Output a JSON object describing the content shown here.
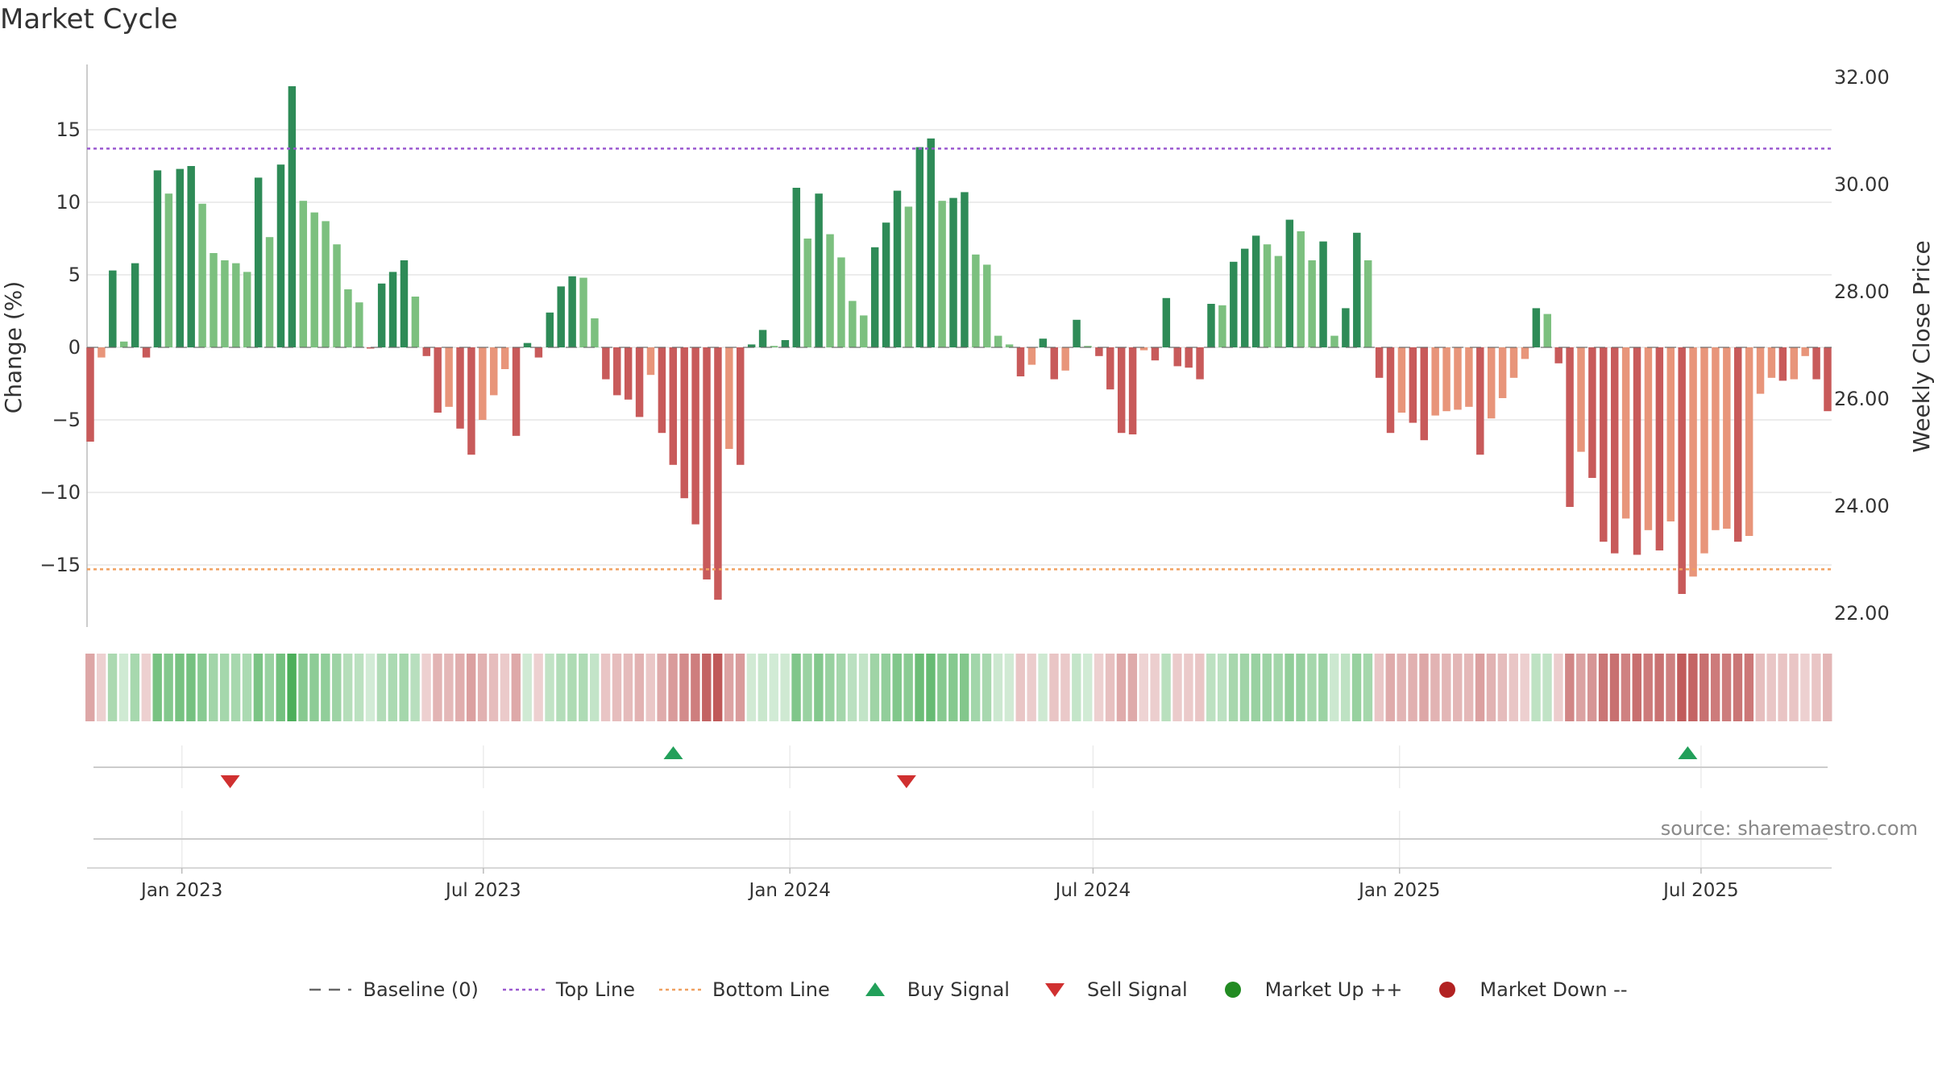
{
  "title": "Market Cycle",
  "source": "source: sharemaestro.com",
  "colors": {
    "strong_up": "#2e8b57",
    "up": "#7cc07f",
    "strong_down": "#c85a5a",
    "down": "#e8957a",
    "top_line": "#9b59d0",
    "bottom_line": "#f0a060",
    "buy": "#22a05a",
    "sell": "#d03030",
    "market_up": "#228b22",
    "market_down": "#b22222",
    "baseline": "#666666"
  },
  "legend": [
    {
      "key": "baseline",
      "label": "Baseline (0)",
      "icon": "dash-line-icon"
    },
    {
      "key": "top_line",
      "label": "Top Line",
      "icon": "dotted-line-icon"
    },
    {
      "key": "bottom_line",
      "label": "Bottom Line",
      "icon": "dotted-line-icon"
    },
    {
      "key": "buy",
      "label": "Buy Signal",
      "icon": "triangle-up-icon"
    },
    {
      "key": "sell",
      "label": "Sell Signal",
      "icon": "triangle-down-icon"
    },
    {
      "key": "market_up",
      "label": "Market Up ++",
      "icon": "dot-icon"
    },
    {
      "key": "market_down",
      "label": "Market Down --",
      "icon": "dot-icon"
    }
  ],
  "chart_data": {
    "type": "bar",
    "title": "Market Cycle",
    "ylabel": "Change (%)",
    "y2label": "Weekly Close Price",
    "ylim": [
      -19.5,
      19
    ],
    "y2lim": [
      21.3,
      32.4
    ],
    "yticks": [
      15,
      10,
      5,
      0,
      -5,
      -10,
      -15
    ],
    "ytick_labels": [
      "15",
      "10",
      "5",
      "0",
      "−10",
      "−15"
    ],
    "ytick_labels_full": [
      "15",
      "10",
      "5",
      "0",
      "−5",
      "−10",
      "−15"
    ],
    "y2ticks": [
      32,
      30,
      28,
      26,
      24,
      22
    ],
    "y2tick_labels": [
      "32.00",
      "30.00",
      "28.00",
      "26.00",
      "24.00",
      "22.00"
    ],
    "x_start": "2022-11-07",
    "week_days": 7,
    "x_end": "2025-09-15",
    "xticks": [
      {
        "label": "Jan 2023",
        "date": "2023-01-01"
      },
      {
        "label": "Jul 2023",
        "date": "2023-07-01"
      },
      {
        "label": "Jan 2024",
        "date": "2024-01-01"
      },
      {
        "label": "Jul 2024",
        "date": "2024-07-01"
      },
      {
        "label": "Jan 2025",
        "date": "2025-01-01"
      },
      {
        "label": "Jul 2025",
        "date": "2025-07-01"
      }
    ],
    "top_line": 13.7,
    "bottom_line": -15.3,
    "series": [
      {
        "name": "Weekly Change (%)",
        "values": [
          -6.5,
          -0.7,
          5.3,
          0.4,
          5.8,
          -0.7,
          12.2,
          10.6,
          12.3,
          12.5,
          9.9,
          6.5,
          6.0,
          5.8,
          5.2,
          11.7,
          7.6,
          12.6,
          18.0,
          10.1,
          9.3,
          8.7,
          7.1,
          4.0,
          3.1,
          0,
          4.4,
          5.2,
          6.0,
          3.5,
          -0.6,
          -4.5,
          -4.1,
          -5.6,
          -7.4,
          -5.0,
          -3.3,
          -1.5,
          -6.1,
          0.3,
          -0.7,
          2.4,
          4.2,
          4.9,
          4.8,
          2.0,
          -2.2,
          -3.3,
          -3.6,
          -4.8,
          -1.9,
          -5.9,
          -8.1,
          -10.4,
          -12.2,
          -16.0,
          -17.4,
          -7.0,
          -8.1,
          0.2,
          1.2,
          0.1,
          0.5,
          11.0,
          7.5,
          10.6,
          7.8,
          6.2,
          3.2,
          2.2,
          6.9,
          8.6,
          10.8,
          9.7,
          13.8,
          14.4,
          10.1,
          10.3,
          10.7,
          6.4,
          5.7,
          0.8,
          0.2,
          -2.0,
          -1.2,
          0.6,
          -2.2,
          -1.6,
          1.9,
          0.1,
          -0.6,
          -2.9,
          -5.9,
          -6.0,
          -0.2,
          -0.9,
          3.4,
          -1.3,
          -1.4,
          -2.2,
          3.0,
          2.9,
          5.9,
          6.8,
          7.7,
          7.1,
          6.3,
          8.8,
          8.0,
          6.0,
          7.3,
          0.8,
          2.7,
          7.9,
          6.0,
          -2.1,
          -5.9,
          -4.5,
          -5.2,
          -6.4,
          -4.7,
          -4.4,
          -4.3,
          -4.1,
          -7.4,
          -4.9,
          -3.5,
          -2.1,
          -0.8,
          2.7,
          2.3,
          -1.1,
          -11.0,
          -7.2,
          -9.0,
          -13.4,
          -14.2,
          -11.8,
          -14.3,
          -12.6,
          -14.0,
          -12.0,
          -17.0,
          -15.8,
          -14.2,
          -12.6,
          -12.5,
          -13.4,
          -13.0,
          -3.2,
          -2.1,
          -2.3,
          -2.2,
          -0.6,
          -2.2,
          -4.4
        ]
      }
    ],
    "buy_signals": [
      "2023-10-23",
      "2025-06-23"
    ],
    "sell_signals": [
      "2023-01-30",
      "2024-03-11"
    ]
  }
}
